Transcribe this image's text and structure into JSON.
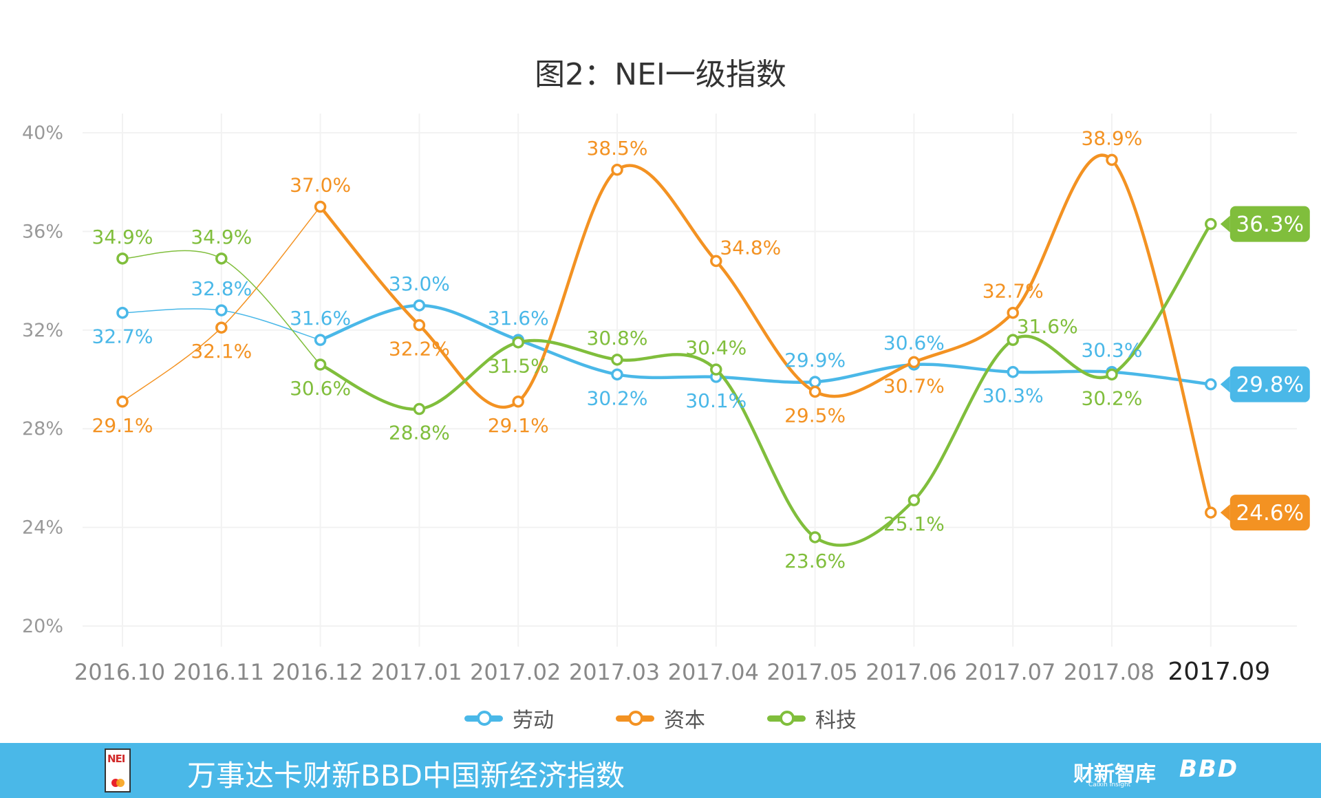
{
  "title": "图2：NEI一级指数",
  "colors": {
    "labor": "#4ab8e8",
    "capital": "#f39222",
    "tech": "#80be3c",
    "grid": "#f2f2f2",
    "footer": "#4ab8e8"
  },
  "chart_data": {
    "type": "line",
    "title": "图2：NEI一级指数",
    "categories": [
      "2016.10",
      "2016.11",
      "2016.12",
      "2017.01",
      "2017.02",
      "2017.03",
      "2017.04",
      "2017.05",
      "2017.06",
      "2017.07",
      "2017.08",
      "2017.09"
    ],
    "y_ticks": [
      "20%",
      "24%",
      "28%",
      "32%",
      "36%",
      "40%"
    ],
    "ylim": [
      20,
      40
    ],
    "grid": true,
    "series": [
      {
        "name": "劳动",
        "color_key": "labor",
        "values": [
          32.7,
          32.8,
          31.6,
          33.0,
          31.6,
          30.2,
          30.1,
          29.9,
          30.6,
          30.3,
          30.3,
          29.8
        ],
        "labels": [
          "32.7%",
          "32.8%",
          "31.6%",
          "33.0%",
          "31.6%",
          "30.2%",
          "30.1%",
          "29.9%",
          "30.6%",
          "30.3%",
          "30.3%",
          "29.8%"
        ]
      },
      {
        "name": "资本",
        "color_key": "capital",
        "values": [
          29.1,
          32.1,
          37.0,
          32.2,
          29.1,
          38.5,
          34.8,
          29.5,
          30.7,
          32.7,
          38.9,
          24.6
        ],
        "labels": [
          "29.1%",
          "32.1%",
          "37.0%",
          "32.2%",
          "29.1%",
          "38.5%",
          "34.8%",
          "29.5%",
          "30.7%",
          "32.7%",
          "38.9%",
          "24.6%"
        ]
      },
      {
        "name": "科技",
        "color_key": "tech",
        "values": [
          34.9,
          34.9,
          30.6,
          28.8,
          31.5,
          30.8,
          30.4,
          23.6,
          25.1,
          31.6,
          30.2,
          36.3
        ],
        "labels": [
          "34.9%",
          "34.9%",
          "30.6%",
          "28.8%",
          "31.5%",
          "30.8%",
          "30.4%",
          "23.6%",
          "25.1%",
          "31.6%",
          "30.2%",
          "36.3%"
        ]
      }
    ]
  },
  "legend": {
    "items": [
      {
        "label": "劳动",
        "color_key": "labor"
      },
      {
        "label": "资本",
        "color_key": "capital"
      },
      {
        "label": "科技",
        "color_key": "tech"
      }
    ]
  },
  "footer": {
    "logo_text": "NEI",
    "title": "万事达卡财新BBD中国新经济指数",
    "brand1": "财新智库",
    "brand1_sub": "Caixin Insight",
    "brand2": "BBD"
  }
}
